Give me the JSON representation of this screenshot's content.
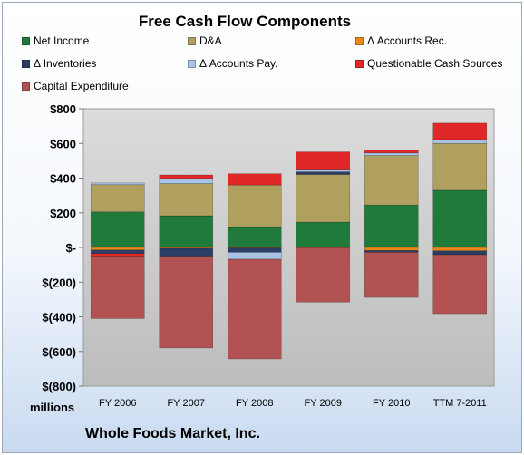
{
  "chart_data": {
    "type": "bar",
    "stacked": true,
    "title": "Free Cash Flow Components",
    "units_label": "millions",
    "company": "Whole Foods Market, Inc.",
    "categories": [
      "FY 2006",
      "FY 2007",
      "FY 2008",
      "FY 2009",
      "FY 2010",
      "TTM 7-2011"
    ],
    "ylim": [
      -800,
      800
    ],
    "yticks": [
      800,
      600,
      400,
      200,
      0,
      -200,
      -400,
      -600,
      -800
    ],
    "ytick_labels": [
      "$800",
      "$600",
      "$400",
      "$200",
      "$-",
      "$(200)",
      "$(400)",
      "$(600)",
      "$(800)"
    ],
    "grid": false,
    "legend_position": "top",
    "series": [
      {
        "name": "Net Income",
        "color": "#1f7a3c",
        "values": [
          205,
          183,
          115,
          146,
          245,
          330
        ]
      },
      {
        "name": "D&A",
        "color": "#b0a060",
        "values": [
          157,
          185,
          245,
          275,
          285,
          270
        ]
      },
      {
        "name": "Δ Accounts Rec.",
        "color": "#e8891a",
        "values": [
          -15,
          -5,
          -3,
          -2,
          -18,
          -20
        ]
      },
      {
        "name": "Δ Inventories",
        "color": "#2b3f66",
        "values": [
          -20,
          -45,
          -25,
          15,
          -10,
          -22
        ]
      },
      {
        "name": "Δ Accounts Pay.",
        "color": "#a8c3e4",
        "values": [
          10,
          30,
          -40,
          10,
          15,
          22
        ]
      },
      {
        "name": "Questionable Cash Sources",
        "color": "#e02828",
        "values": [
          -15,
          20,
          65,
          105,
          18,
          95
        ]
      },
      {
        "name": "Capital Expenditure",
        "color": "#b35252",
        "values": [
          -360,
          -530,
          -575,
          -313,
          -260,
          -340
        ]
      }
    ]
  }
}
